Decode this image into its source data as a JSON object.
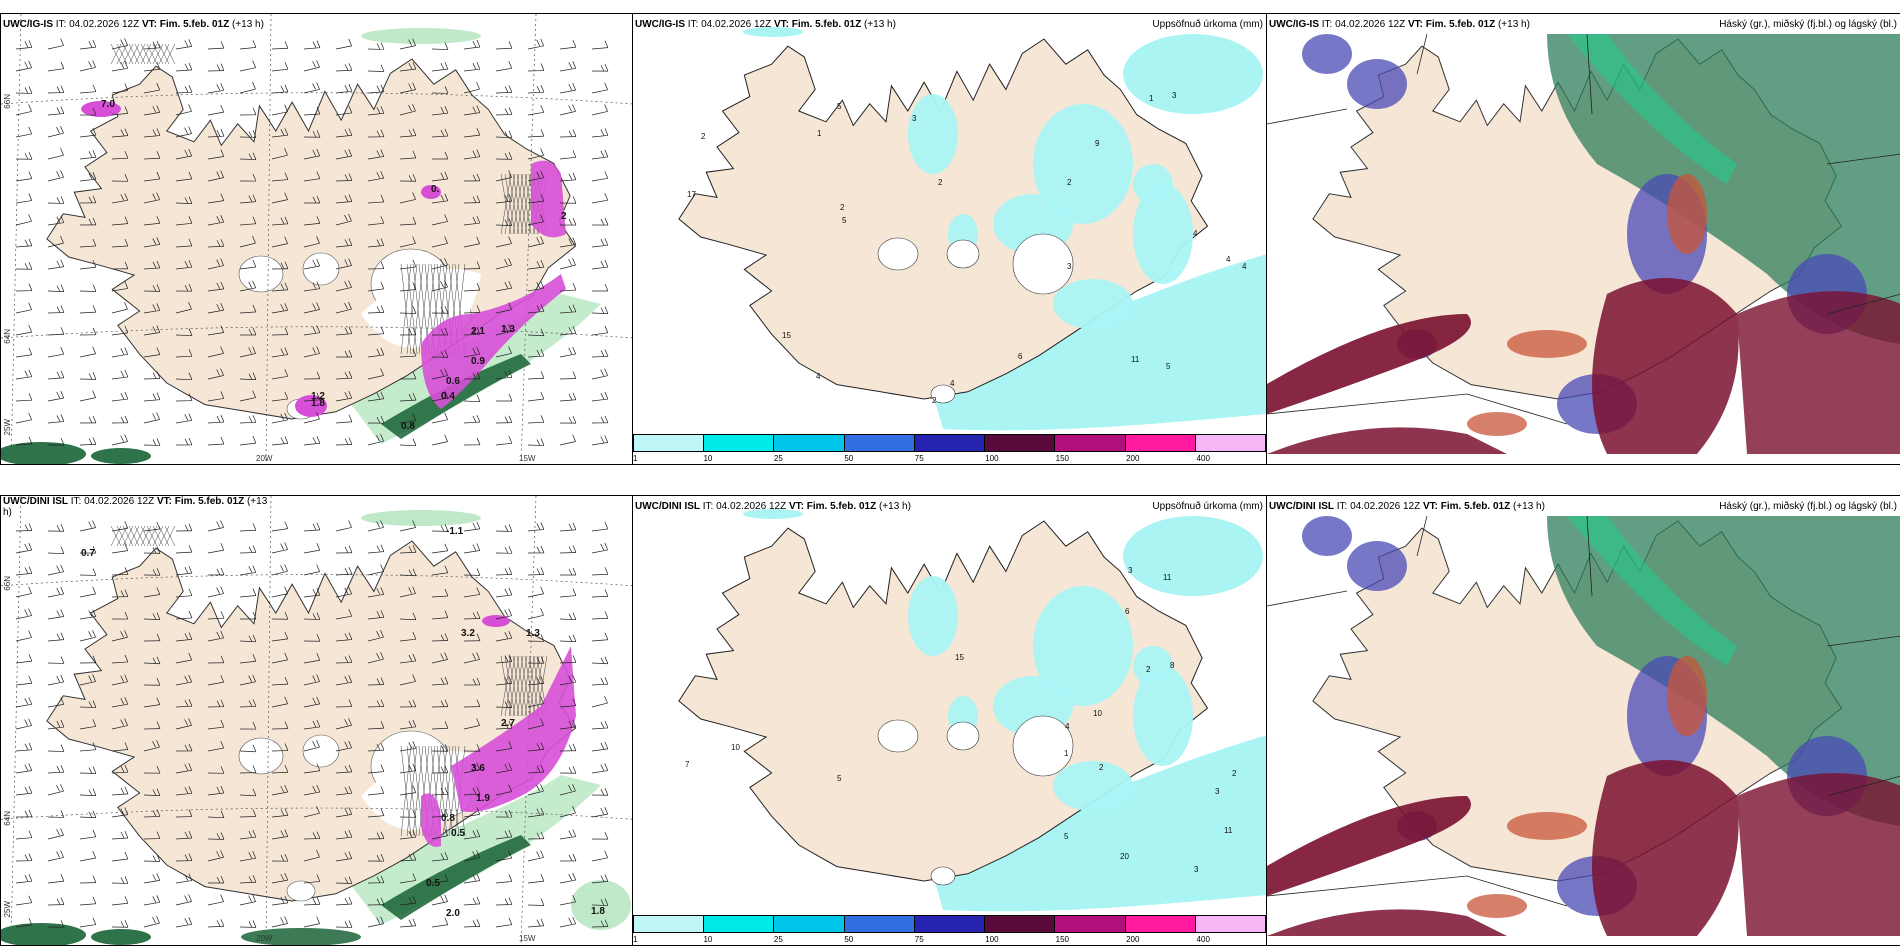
{
  "panels": {
    "tl": {
      "title_prefix": "UWC/IG-IS",
      "it": " IT: 04.02.2026 12Z ",
      "vt": "VT: Fim. 5.feb. 01Z",
      "lead": " (+13 h)",
      "right": ""
    },
    "tm": {
      "title_prefix": "UWC/IG-IS",
      "it": " IT: 04.02.2026 12Z ",
      "vt": "VT: Fim. 5.feb. 01Z",
      "lead": " (+13 h)",
      "right": "Uppsöfnuð úrkoma (mm)"
    },
    "tr": {
      "title_prefix": "UWC/IG-IS",
      "it": " IT: 04.02.2026 12Z ",
      "vt": "VT: Fim. 5.feb. 01Z",
      "lead": " (+13 h)",
      "right": "Háský (gr.), miðský (fj.bl.) og lágský (bl.)"
    },
    "bl": {
      "title_prefix": "UWC/DINI ISL",
      "it": " IT: 04.02.2026 12Z ",
      "vt": "VT: Fim. 5.feb. 01Z",
      "lead": " (+13",
      "lead2": "h)",
      "right": ""
    },
    "bm": {
      "title_prefix": "UWC/DINI ISL",
      "it": " IT: 04.02.2026 12Z ",
      "vt": "VT: Fim. 5.feb. 01Z",
      "lead": " (+13 h)",
      "right": "Uppsöfnuð úrkoma (mm)"
    },
    "br": {
      "title_prefix": "UWC/DINI ISL",
      "it": " IT: 04.02.2026 12Z ",
      "vt": "VT: Fim. 5.feb. 01Z",
      "lead": " (+13 h)",
      "right": "Háský (gr.), miðský (fj.bl.) og lágský (bl.)"
    }
  },
  "axes": {
    "lon_20": "20W",
    "lon_15": "15W",
    "lat_66": "66N",
    "lat_64": "64N",
    "lat_63": "63N",
    "lon_25": "25W"
  },
  "legend": {
    "ticks": [
      "1",
      "10",
      "25",
      "50",
      "75",
      "100",
      "150",
      "200",
      "400"
    ],
    "colors": [
      "#bff7f7",
      "#00eaea",
      "#00c6ea",
      "#2f6fe0",
      "#2424b0",
      "#5a0a3a",
      "#b0107a",
      "#ff1aa0",
      "#f5b6f5"
    ]
  },
  "labels_tl": [
    "7.0",
    "0.",
    "1.8",
    "2.1",
    "1.3",
    "0.9",
    "0.6",
    "0.4",
    "0.8",
    "1.2",
    "2"
  ],
  "labels_bl": [
    "0.7",
    "-1.1",
    "3.2",
    "1.3",
    "2.7",
    "3.6",
    "1.9",
    "0.8",
    "0.5",
    "0.5",
    "2.0",
    "1.8"
  ],
  "labels_tm": [
    "2",
    "1",
    "2",
    "4",
    "1",
    "2",
    "3",
    "5",
    "3",
    "4",
    "4",
    "5",
    "9",
    "15",
    "17",
    "4",
    "2",
    "3",
    "5",
    "6",
    "11",
    "4",
    "2"
  ],
  "labels_bm": [
    "1",
    "2",
    "2",
    "3",
    "5",
    "6",
    "8",
    "15",
    "11",
    "20",
    "10",
    "4",
    "7",
    "2",
    "5",
    "3",
    "11",
    "10",
    "3"
  ],
  "colors": {
    "land": "#f5e6d6",
    "water": "#ffffff",
    "precip": "#aaf4f4",
    "snowmag": "#d74fd7",
    "greenlight": "#bfe9c8",
    "greendark": "#0b5a2a",
    "cloud_high": "#2e7d5a",
    "cloud_mid": "#4a4ab6",
    "cloud_low": "#7a1030"
  }
}
